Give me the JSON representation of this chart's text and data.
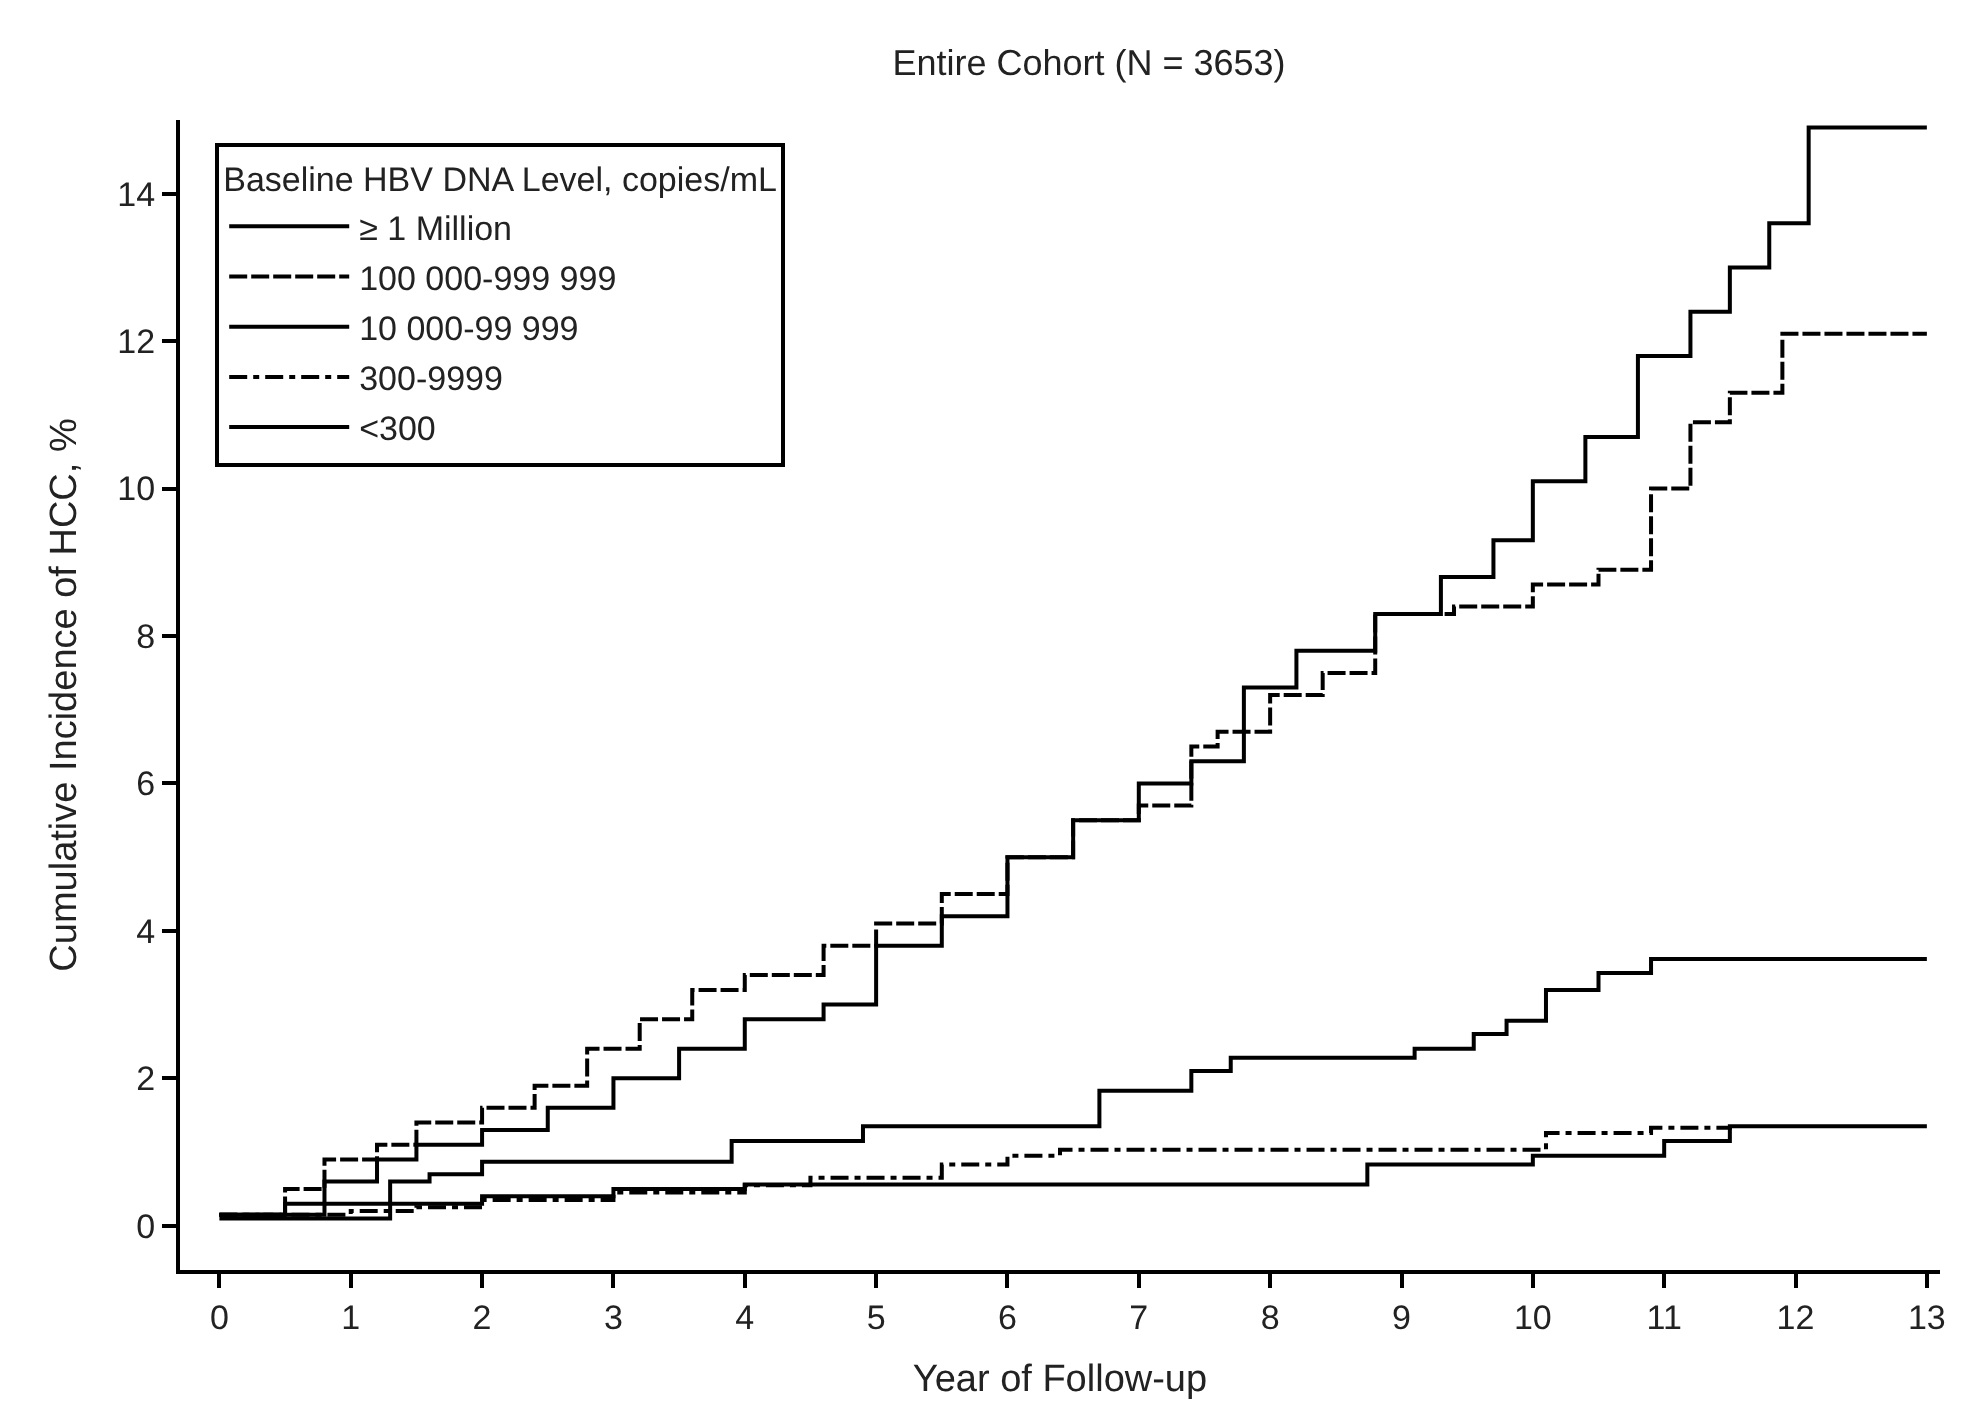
{
  "chart_data": {
    "type": "step",
    "title": "Entire Cohort (N = 3653)",
    "xlabel": "Year of Follow-up",
    "ylabel": "Cumulative Incidence of HCC, %",
    "legend_title": "Baseline HBV DNA Level, copies/mL",
    "legend": "top left",
    "marker": "none",
    "xlim": [
      -0.3,
      13.1
    ],
    "xticks": [
      0,
      1,
      2,
      3,
      4,
      5,
      6,
      7,
      8,
      9,
      10,
      11,
      12,
      13
    ],
    "ylim": [
      -0.6,
      15
    ],
    "yticks": [
      0,
      2,
      4,
      6,
      8,
      10,
      12,
      14
    ],
    "series": [
      {
        "name": "≥ 1 Million",
        "color": "#000000",
        "line_style": "solid",
        "x": [
          0,
          0.5,
          0.8,
          1.2,
          1.5,
          2,
          2.5,
          3,
          3.5,
          4,
          4.6,
          5,
          5.5,
          6,
          6.5,
          7,
          7.4,
          7.8,
          8.2,
          8.8,
          9.3,
          9.7,
          10,
          10.4,
          10.8,
          11.2,
          11.5,
          11.8,
          12.1,
          13
        ],
        "values": [
          0.15,
          0.3,
          0.6,
          0.9,
          1.1,
          1.3,
          1.6,
          2.0,
          2.4,
          2.8,
          3.0,
          3.8,
          4.2,
          5.0,
          5.5,
          6.0,
          6.3,
          7.3,
          7.8,
          8.3,
          8.8,
          9.3,
          10.1,
          10.7,
          11.8,
          12.4,
          13.0,
          13.6,
          14.9,
          14.9
        ]
      },
      {
        "name": "100 000-999 999",
        "color": "#000000",
        "line_style": "dashed",
        "x": [
          0,
          0.5,
          0.8,
          1.2,
          1.5,
          2,
          2.4,
          2.8,
          3.2,
          3.6,
          4,
          4.6,
          5,
          5.5,
          6,
          6.5,
          7,
          7.4,
          7.6,
          8,
          8.4,
          8.8,
          9.4,
          10,
          10.5,
          10.9,
          11.2,
          11.5,
          11.9,
          13
        ],
        "values": [
          0.15,
          0.5,
          0.9,
          1.1,
          1.4,
          1.6,
          1.9,
          2.4,
          2.8,
          3.2,
          3.4,
          3.8,
          4.1,
          4.5,
          5.0,
          5.5,
          5.7,
          6.5,
          6.7,
          7.2,
          7.5,
          8.3,
          8.4,
          8.7,
          8.9,
          10.0,
          10.9,
          11.3,
          12.1,
          12.1
        ]
      },
      {
        "name": "10 000-99 999",
        "color": "#000000",
        "line_style": "solid",
        "x": [
          0,
          0.8,
          1.3,
          1.6,
          2.0,
          3.9,
          4.9,
          6.7,
          7.4,
          7.7,
          9.1,
          9.55,
          9.8,
          10.1,
          10.5,
          10.9,
          13
        ],
        "values": [
          0.15,
          0.3,
          0.6,
          0.7,
          0.87,
          1.15,
          1.35,
          1.83,
          2.1,
          2.28,
          2.4,
          2.6,
          2.78,
          3.2,
          3.43,
          3.62,
          3.62
        ]
      },
      {
        "name": "300-9999",
        "color": "#000000",
        "line_style": "dotted",
        "x": [
          0,
          1,
          1.5,
          2,
          3,
          4,
          4.5,
          5.5,
          6,
          6.4,
          10.1,
          10.9,
          11.5
        ],
        "values": [
          0.15,
          0.2,
          0.25,
          0.35,
          0.45,
          0.55,
          0.65,
          0.83,
          0.95,
          1.03,
          1.26,
          1.33,
          1.35
        ]
      },
      {
        "name": "<300",
        "color": "#000000",
        "line_style": "solid",
        "x": [
          0,
          1.3,
          2,
          3,
          4,
          8.74,
          10.0,
          11.0,
          11.5,
          13
        ],
        "values": [
          0.1,
          0.3,
          0.4,
          0.5,
          0.56,
          0.83,
          0.95,
          1.15,
          1.35,
          1.35
        ]
      }
    ]
  }
}
